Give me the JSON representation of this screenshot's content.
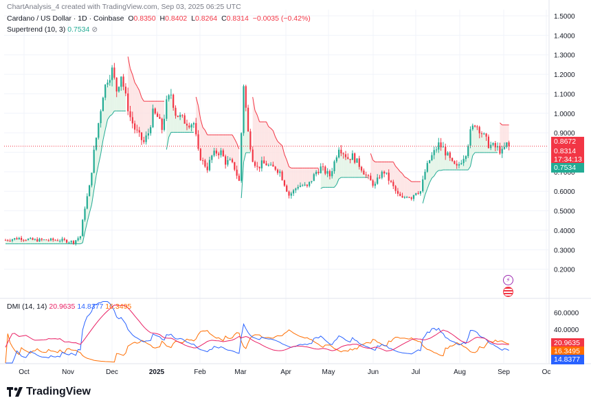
{
  "header": {
    "attribution": "ChartAnalysis_4 created with TradingView.com, Sep 03, 2025 06:25 UTC",
    "symbol": "Cardano / US Dollar · 1D · Coinbase",
    "open_label": "O",
    "open": "0.8350",
    "high_label": "H",
    "high": "0.8402",
    "low_label": "L",
    "low": "0.8264",
    "close_label": "C",
    "close": "0.8314",
    "change": "−0.0035 (−0.42%)",
    "indicator": "Supertrend (10, 3)",
    "indicator_value": "0.7534",
    "indicator_icon": "eye-off-icon"
  },
  "dmi_legend": {
    "label": "DMI (14, 14)",
    "v1": "20.9635",
    "v2": "14.8377",
    "v3": "16.3495"
  },
  "price_tags": {
    "t1": "0.8672",
    "t2": "0.8314",
    "t3": "17:34:13",
    "t4": "0.7534"
  },
  "dmi_tags": {
    "t1": "20.9635",
    "t2": "16.3495",
    "t3": "14.8377"
  },
  "colors": {
    "up": "#22ab94",
    "down": "#f23645",
    "st_up_fill": "#e0f3e3",
    "st_dn_fill": "#fde0e0",
    "adx": "#e91e63",
    "plus_di": "#2962ff",
    "minus_di": "#ff6d00"
  },
  "brand": "TradingView",
  "chart_data": [
    {
      "type": "candlestick",
      "title": "Cardano / US Dollar · 1D · Coinbase",
      "ylim": [
        0.1,
        1.5
      ],
      "yticks": [
        "1.5000",
        "1.4000",
        "1.3000",
        "1.2000",
        "1.1000",
        "1.0000",
        "0.9000",
        "0.8000",
        "0.7000",
        "0.6000",
        "0.5000",
        "0.4000",
        "0.3000",
        "0.2000"
      ],
      "xticks": [
        "Oct",
        "Nov",
        "Dec",
        "2025",
        "Feb",
        "Mar",
        "Apr",
        "May",
        "Jun",
        "Jul",
        "Aug",
        "Sep",
        "Oc"
      ],
      "price_path": [
        [
          0,
          0.35
        ],
        [
          6,
          0.36
        ],
        [
          12,
          0.35
        ],
        [
          18,
          0.35
        ],
        [
          24,
          0.35
        ],
        [
          30,
          0.34
        ],
        [
          33,
          0.37
        ],
        [
          35,
          0.52
        ],
        [
          37,
          0.62
        ],
        [
          39,
          0.8
        ],
        [
          41,
          0.95
        ],
        [
          43,
          1.1
        ],
        [
          45,
          1.18
        ],
        [
          47,
          1.22
        ],
        [
          49,
          1.12
        ],
        [
          51,
          1.2
        ],
        [
          53,
          1.08
        ],
        [
          55,
          0.98
        ],
        [
          57,
          0.92
        ],
        [
          59,
          0.88
        ],
        [
          61,
          0.85
        ],
        [
          63,
          0.9
        ],
        [
          65,
          1.0
        ],
        [
          67,
          0.98
        ],
        [
          69,
          0.92
        ],
        [
          71,
          1.05
        ],
        [
          73,
          1.1
        ],
        [
          75,
          1.0
        ],
        [
          77,
          0.98
        ],
        [
          79,
          0.96
        ],
        [
          81,
          0.95
        ],
        [
          83,
          0.95
        ],
        [
          85,
          0.8
        ],
        [
          87,
          0.75
        ],
        [
          89,
          0.72
        ],
        [
          91,
          0.78
        ],
        [
          93,
          0.8
        ],
        [
          95,
          0.8
        ],
        [
          97,
          0.75
        ],
        [
          99,
          0.75
        ],
        [
          101,
          0.72
        ],
        [
          103,
          0.65
        ],
        [
          105,
          1.15
        ],
        [
          107,
          0.9
        ],
        [
          109,
          0.77
        ],
        [
          111,
          0.72
        ],
        [
          113,
          0.74
        ],
        [
          115,
          0.74
        ],
        [
          117,
          0.72
        ],
        [
          119,
          0.72
        ],
        [
          121,
          0.7
        ],
        [
          123,
          0.64
        ],
        [
          125,
          0.58
        ],
        [
          127,
          0.6
        ],
        [
          129,
          0.63
        ],
        [
          131,
          0.63
        ],
        [
          133,
          0.62
        ],
        [
          135,
          0.66
        ],
        [
          137,
          0.7
        ],
        [
          139,
          0.72
        ],
        [
          141,
          0.7
        ],
        [
          143,
          0.68
        ],
        [
          145,
          0.75
        ],
        [
          147,
          0.83
        ],
        [
          149,
          0.8
        ],
        [
          151,
          0.77
        ],
        [
          153,
          0.78
        ],
        [
          155,
          0.75
        ],
        [
          157,
          0.72
        ],
        [
          159,
          0.68
        ],
        [
          161,
          0.65
        ],
        [
          163,
          0.63
        ],
        [
          165,
          0.68
        ],
        [
          167,
          0.7
        ],
        [
          169,
          0.66
        ],
        [
          171,
          0.62
        ],
        [
          173,
          0.58
        ],
        [
          175,
          0.56
        ],
        [
          177,
          0.58
        ],
        [
          179,
          0.57
        ],
        [
          181,
          0.6
        ],
        [
          183,
          0.6
        ],
        [
          185,
          0.7
        ],
        [
          187,
          0.76
        ],
        [
          189,
          0.8
        ],
        [
          191,
          0.84
        ],
        [
          193,
          0.82
        ],
        [
          195,
          0.78
        ],
        [
          197,
          0.74
        ],
        [
          199,
          0.72
        ],
        [
          201,
          0.76
        ],
        [
          203,
          0.8
        ],
        [
          205,
          0.9
        ],
        [
          207,
          0.95
        ],
        [
          209,
          0.92
        ],
        [
          211,
          0.88
        ],
        [
          213,
          0.84
        ],
        [
          215,
          0.83
        ],
        [
          217,
          0.82
        ],
        [
          219,
          0.8
        ],
        [
          221,
          0.84
        ],
        [
          222,
          0.8314
        ]
      ],
      "supertrend_current": 0.7534,
      "last_close": 0.8314
    },
    {
      "type": "line",
      "title": "DMI (14, 14)",
      "yticks": [
        "60.0000",
        "40.0000"
      ],
      "series": [
        {
          "name": "ADX",
          "last": 20.9635
        },
        {
          "name": "+DI",
          "last": 14.8377
        },
        {
          "name": "-DI",
          "last": 16.3495
        }
      ]
    }
  ]
}
